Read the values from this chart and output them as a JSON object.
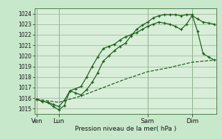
{
  "background_color": "#c8e8cc",
  "plot_bg_color": "#d8eed8",
  "grid_color": "#99bb99",
  "line_color": "#1a5e1a",
  "xlabel": "Pression niveau de la mer( hPa )",
  "ylim": [
    1014.5,
    1024.5
  ],
  "yticks": [
    1015,
    1016,
    1017,
    1018,
    1019,
    1020,
    1021,
    1022,
    1023,
    1024
  ],
  "day_labels": [
    "Ven",
    "Lun",
    "Sam",
    "Dim"
  ],
  "day_positions": [
    0,
    2,
    10,
    14
  ],
  "xlim": [
    -0.2,
    16.2
  ],
  "series1_x": [
    0,
    0.5,
    1,
    1.5,
    2,
    2.5,
    3,
    3.5,
    4,
    4.5,
    5,
    5.5,
    6,
    6.5,
    7,
    7.5,
    8,
    8.5,
    9,
    9.5,
    10,
    10.5,
    11,
    11.5,
    12,
    12.5,
    13,
    13.5,
    14,
    14.5,
    15,
    15.5,
    16
  ],
  "series1_y": [
    1015.9,
    1015.7,
    1015.6,
    1015.4,
    1015.2,
    1015.8,
    1016.7,
    1016.9,
    1017.1,
    1018.0,
    1019.0,
    1019.9,
    1020.7,
    1020.9,
    1021.1,
    1021.5,
    1021.8,
    1022.0,
    1022.2,
    1022.5,
    1022.8,
    1023.0,
    1023.2,
    1023.1,
    1023.0,
    1022.8,
    1022.5,
    1023.0,
    1023.8,
    1023.5,
    1023.2,
    1023.1,
    1023.0
  ],
  "series2_x": [
    0,
    0.5,
    1,
    1.5,
    2,
    2.5,
    3,
    3.5,
    4,
    4.5,
    5,
    5.5,
    6,
    6.5,
    7,
    7.5,
    8,
    8.5,
    9,
    9.5,
    10,
    10.5,
    11,
    11.5,
    12,
    12.5,
    13,
    13.5,
    14,
    14.5,
    15,
    15.5,
    16
  ],
  "series2_y": [
    1015.9,
    1015.7,
    1015.6,
    1015.2,
    1014.9,
    1015.3,
    1016.7,
    1016.5,
    1016.3,
    1016.8,
    1017.5,
    1018.4,
    1019.5,
    1020.0,
    1020.5,
    1020.9,
    1021.2,
    1021.9,
    1022.5,
    1022.9,
    1023.2,
    1023.6,
    1023.8,
    1023.9,
    1023.9,
    1023.9,
    1023.8,
    1023.9,
    1023.9,
    1022.3,
    1020.2,
    1019.9,
    1019.6
  ],
  "series3_x": [
    0,
    2,
    4,
    6,
    8,
    10,
    12,
    14,
    16
  ],
  "series3_y": [
    1015.9,
    1015.6,
    1016.2,
    1017.0,
    1017.8,
    1018.5,
    1018.9,
    1019.4,
    1019.6
  ]
}
